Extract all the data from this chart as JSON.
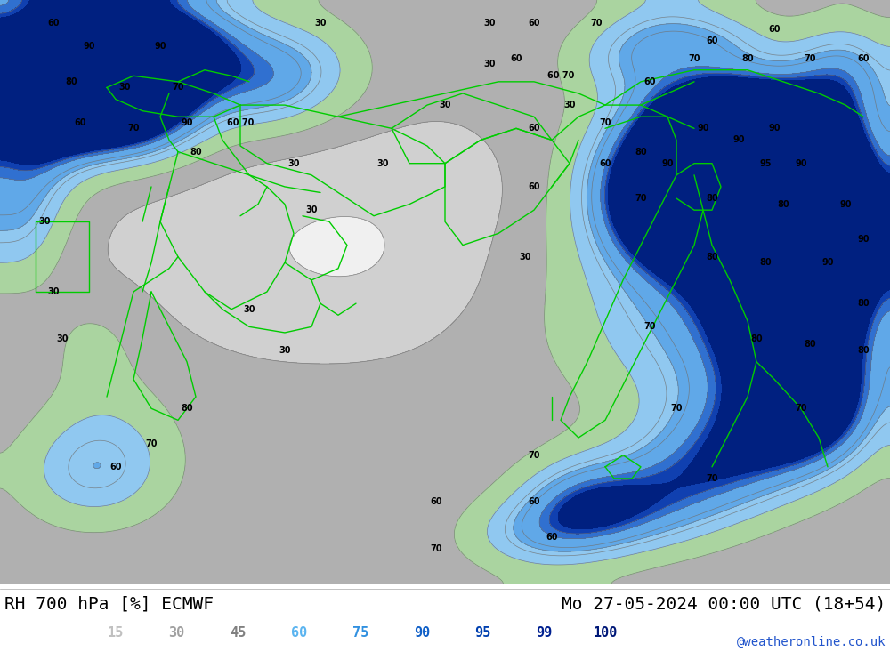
{
  "title_left": "RH 700 hPa [%] ECMWF",
  "title_right": "Mo 27-05-2024 00:00 UTC (18+54)",
  "credit": "@weatheronline.co.uk",
  "legend_values": [
    15,
    30,
    45,
    60,
    75,
    90,
    95,
    99,
    100
  ],
  "legend_colors_hex": [
    "#c0c0c0",
    "#a0a0a0",
    "#808080",
    "#5ab4f0",
    "#3090e0",
    "#1060c8",
    "#0040b0",
    "#002090",
    "#001878"
  ],
  "levels": [
    0,
    15,
    30,
    45,
    60,
    75,
    90,
    95,
    99,
    101
  ],
  "fill_colors": [
    "#f0f0f0",
    "#d0d0d0",
    "#b0b0b0",
    "#aad4a0",
    "#90c8f0",
    "#60a8e8",
    "#3070d0",
    "#1040b0",
    "#002080"
  ],
  "contour_color": "#707070",
  "border_color": "#00cc00",
  "label_color": "#000000",
  "bg_color": "#ffffff",
  "title_fontsize": 14,
  "credit_fontsize": 10,
  "legend_fontsize": 11,
  "figsize": [
    10.0,
    7.33
  ],
  "dpi": 100
}
